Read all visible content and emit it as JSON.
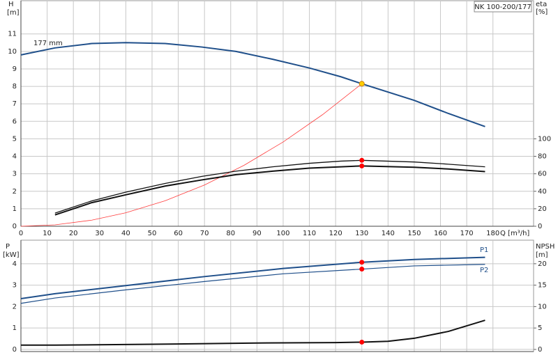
{
  "chart_data": [
    {
      "type": "line",
      "title": "NK 100-200/177",
      "y_label": "H",
      "y_unit": "[m]",
      "y2_label": "eta",
      "y2_unit": "[%]",
      "x_label": "Q [m³/h]",
      "annotation": "177 mm",
      "xlim": [
        0,
        195.5
      ],
      "xticks": [
        0,
        10,
        20,
        30,
        40,
        50,
        60,
        70,
        80,
        90,
        100,
        110,
        120,
        130,
        140,
        150,
        160,
        170,
        180
      ],
      "ylim": [
        0,
        12.9
      ],
      "yticks": [
        0,
        1,
        2,
        3,
        4,
        5,
        6,
        7,
        8,
        9,
        10,
        11
      ],
      "y2lim": [
        0,
        258
      ],
      "y2ticks": [
        0,
        20,
        40,
        60,
        80,
        100
      ],
      "grid": true,
      "show_xtick_labels": true,
      "series": [
        {
          "name": "177 mm",
          "color": "#1f4f8a",
          "line_width": 2,
          "x": [
            0,
            13,
            27,
            40,
            55,
            69,
            82,
            96,
            110,
            122,
            130,
            150,
            163,
            177
          ],
          "values": [
            9.8,
            10.2,
            10.45,
            10.5,
            10.45,
            10.25,
            10.0,
            9.55,
            9.05,
            8.55,
            8.15,
            7.2,
            6.45,
            5.7
          ]
        },
        {
          "color": "#ff3b3b",
          "line_width": 0.8,
          "x": [
            0,
            13,
            27,
            40,
            55,
            70,
            85,
            100,
            115,
            130
          ],
          "values": [
            0,
            0.08,
            0.35,
            0.77,
            1.46,
            2.36,
            3.48,
            4.82,
            6.38,
            8.15
          ]
        },
        {
          "color": "#111111",
          "line_width": 1.3,
          "axis": "y2",
          "x": [
            13,
            27,
            40,
            55,
            69,
            82,
            96,
            110,
            122,
            130,
            150,
            163,
            177
          ],
          "values": [
            15,
            29,
            39,
            49,
            57,
            63,
            68,
            72,
            74.5,
            75.4,
            73.5,
            71,
            68
          ]
        },
        {
          "color": "#111111",
          "line_width": 2,
          "axis": "y2",
          "x": [
            13,
            27,
            40,
            55,
            69,
            82,
            96,
            110,
            122,
            130,
            150,
            163,
            177
          ],
          "values": [
            13,
            27,
            36,
            46,
            53,
            59,
            63,
            66.5,
            68,
            69,
            67.5,
            65.5,
            62.5
          ]
        }
      ],
      "markers": [
        {
          "x": 130,
          "y": 8.15,
          "color": "#ffd000"
        },
        {
          "x": 130,
          "y": 75.4,
          "axis": "y2",
          "color": "#ff0000"
        },
        {
          "x": 130,
          "y": 69,
          "axis": "y2",
          "color": "#ff0000"
        }
      ]
    },
    {
      "type": "line",
      "y_label": "P",
      "y_unit": "[kW]",
      "y2_label": "NPSH",
      "y2_unit": "[m]",
      "xlim": [
        0,
        195.5
      ],
      "xticks": [
        0,
        10,
        20,
        30,
        40,
        50,
        60,
        70,
        80,
        90,
        100,
        110,
        120,
        130,
        140,
        150,
        160,
        170,
        180
      ],
      "ylim": [
        -0.1,
        5.1
      ],
      "yticks": [
        0,
        1,
        2,
        3,
        4
      ],
      "y2lim": [
        -0.5,
        25.5
      ],
      "y2ticks": [
        0,
        5,
        10,
        15,
        20
      ],
      "grid": true,
      "show_xtick_labels": false,
      "series": [
        {
          "name": "P1",
          "color": "#1f4f8a",
          "line_width": 2,
          "x": [
            0,
            13,
            40,
            70,
            100,
            130,
            150,
            177
          ],
          "values": [
            2.37,
            2.6,
            2.98,
            3.4,
            3.78,
            4.07,
            4.2,
            4.3
          ]
        },
        {
          "name": "P2",
          "color": "#1f4f8a",
          "line_width": 1.2,
          "x": [
            0,
            13,
            40,
            70,
            100,
            130,
            150,
            177
          ],
          "values": [
            2.15,
            2.4,
            2.78,
            3.17,
            3.53,
            3.75,
            3.9,
            3.97
          ]
        },
        {
          "color": "#111111",
          "line_width": 2,
          "axis": "y2",
          "x": [
            0,
            13,
            50,
            90,
            120,
            130,
            140,
            150,
            163,
            177
          ],
          "values": [
            1,
            1,
            1.2,
            1.5,
            1.6,
            1.7,
            1.9,
            2.6,
            4.2,
            6.8
          ]
        }
      ],
      "markers": [
        {
          "x": 130,
          "y": 4.07,
          "color": "#ff0000"
        },
        {
          "x": 130,
          "y": 3.75,
          "color": "#ff0000"
        },
        {
          "x": 130,
          "y": 1.7,
          "axis": "y2",
          "color": "#ff0000"
        }
      ]
    }
  ]
}
